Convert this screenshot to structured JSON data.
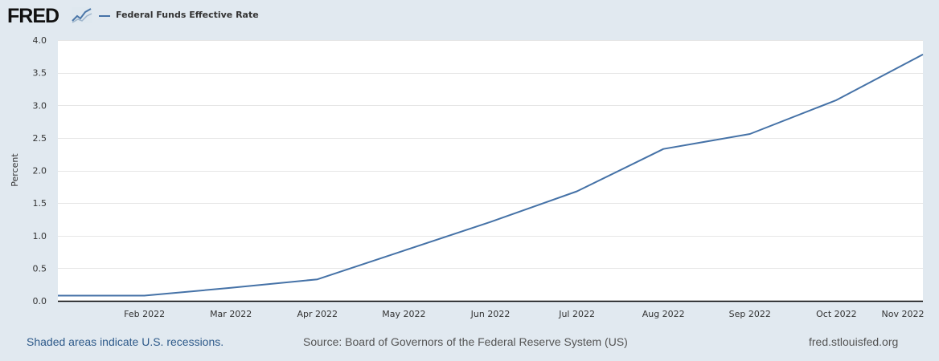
{
  "header": {
    "logo_text": "FRED",
    "legend_label": "Federal Funds Effective Rate"
  },
  "colors": {
    "series": "#4572a7",
    "background": "#e1e9f0",
    "plot": "#ffffff",
    "grid": "#e6e6e6"
  },
  "chart_data": {
    "type": "line",
    "title": "",
    "xlabel": "",
    "ylabel": "Percent",
    "ylim": [
      0,
      4
    ],
    "yticks": [
      0.0,
      0.5,
      1.0,
      1.5,
      2.0,
      2.5,
      3.0,
      3.5,
      4.0
    ],
    "ytick_labels": [
      "0.0",
      "0.5",
      "1.0",
      "1.5",
      "2.0",
      "2.5",
      "3.0",
      "3.5",
      "4.0"
    ],
    "xlim": [
      "2022-01",
      "2022-11"
    ],
    "xtick_labels": [
      "Feb 2022",
      "Mar 2022",
      "Apr 2022",
      "May 2022",
      "Jun 2022",
      "Jul 2022",
      "Aug 2022",
      "Sep 2022",
      "Oct 2022",
      "Nov 2022"
    ],
    "grid": true,
    "legend": "top-left",
    "series": [
      {
        "name": "Federal Funds Effective Rate",
        "x": [
          "2022-01",
          "2022-02",
          "2022-03",
          "2022-04",
          "2022-05",
          "2022-06",
          "2022-07",
          "2022-08",
          "2022-09",
          "2022-10",
          "2022-11"
        ],
        "values": [
          0.08,
          0.08,
          0.2,
          0.33,
          0.77,
          1.21,
          1.68,
          2.33,
          2.56,
          3.08,
          3.78
        ]
      }
    ]
  },
  "footer": {
    "recessions": "Shaded areas indicate U.S. recessions.",
    "source": "Source: Board of Governors of the Federal Reserve System (US)",
    "site": "fred.stlouisfed.org"
  }
}
